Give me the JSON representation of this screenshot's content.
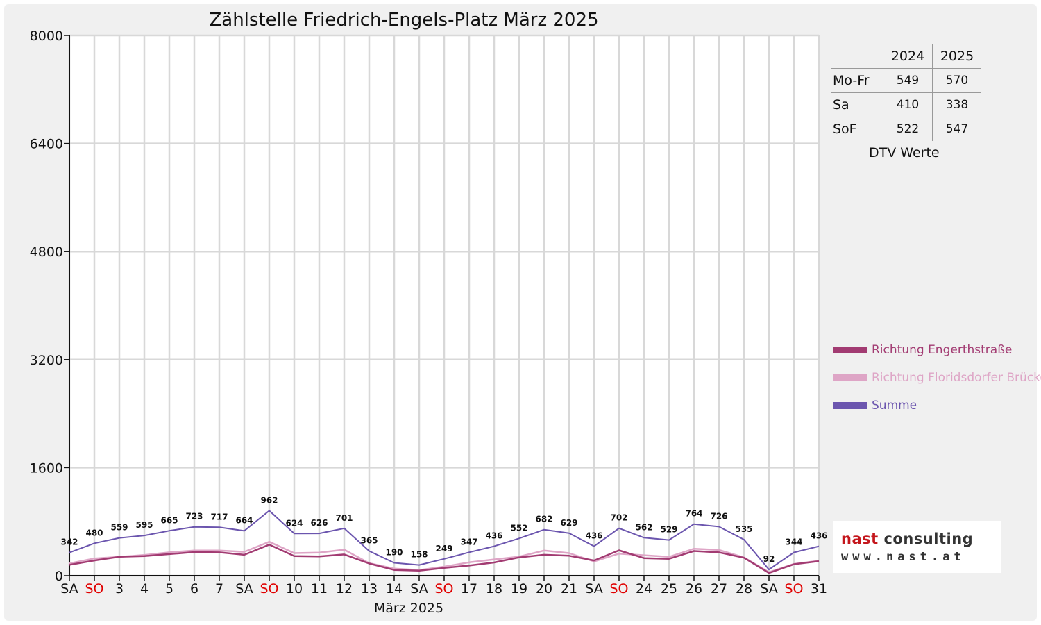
{
  "colors": {
    "engerth": "#a23b72",
    "floridsdorf": "#dea5c6",
    "summe": "#6b55ae",
    "sunday": "#e00000"
  },
  "chart_data": {
    "type": "line",
    "title": "Zählstelle Friedrich-Engels-Platz März 2025",
    "xlabel": "März 2025",
    "ylabel": "",
    "ylim": [
      0,
      8000
    ],
    "yticks": [
      0,
      1600,
      3200,
      4800,
      6400,
      8000
    ],
    "grid": true,
    "legend_position": "right",
    "categories": [
      "SA",
      "SO",
      "3",
      "4",
      "5",
      "6",
      "7",
      "SA",
      "SO",
      "10",
      "11",
      "12",
      "13",
      "14",
      "SA",
      "SO",
      "17",
      "18",
      "19",
      "20",
      "21",
      "SA",
      "SO",
      "24",
      "25",
      "26",
      "27",
      "28",
      "SA",
      "SO",
      "31"
    ],
    "sunday_indices": [
      1,
      8,
      15,
      22,
      29
    ],
    "series": [
      {
        "name": "Richtung Engerthstraße",
        "values": [
          160,
          225,
          280,
          290,
          320,
          350,
          345,
          310,
          460,
          290,
          285,
          315,
          180,
          85,
          75,
          115,
          150,
          195,
          270,
          310,
          295,
          225,
          375,
          260,
          250,
          365,
          345,
          265,
          40,
          170,
          215
        ]
      },
      {
        "name": "Richtung Floridsdorfer Brücke",
        "values": [
          182,
          255,
          279,
          305,
          345,
          373,
          372,
          354,
          502,
          334,
          341,
          386,
          185,
          105,
          83,
          134,
          197,
          241,
          282,
          372,
          334,
          211,
          327,
          302,
          279,
          399,
          381,
          270,
          52,
          174,
          221
        ]
      },
      {
        "name": "Summe",
        "values": [
          342,
          480,
          559,
          595,
          665,
          723,
          717,
          664,
          962,
          624,
          626,
          701,
          365,
          190,
          158,
          249,
          347,
          436,
          552,
          682,
          629,
          436,
          702,
          562,
          529,
          764,
          726,
          535,
          92,
          344,
          436
        ]
      }
    ]
  },
  "dtv": {
    "headers": [
      "2024",
      "2025"
    ],
    "rows": [
      {
        "label": "Mo-Fr",
        "v2024": "549",
        "v2025": "570"
      },
      {
        "label": "Sa",
        "v2024": "410",
        "v2025": "338"
      },
      {
        "label": "SoF",
        "v2024": "522",
        "v2025": "547"
      }
    ],
    "caption": "DTV Werte"
  },
  "logo": {
    "name_part1": "nast",
    "name_part2": "consulting",
    "url": "www.nast.at"
  }
}
